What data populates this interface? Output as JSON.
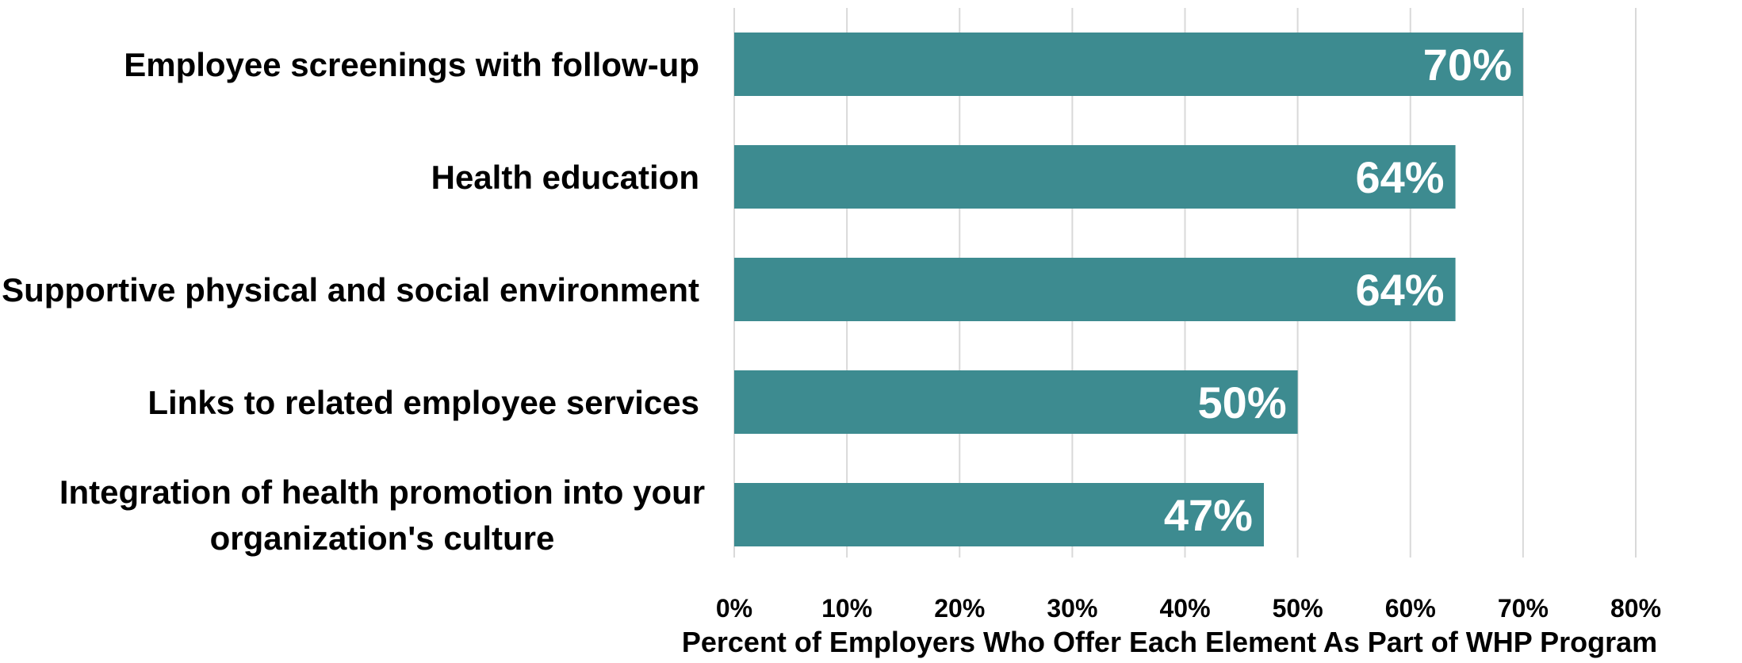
{
  "chart_data": {
    "type": "bar",
    "orientation": "horizontal",
    "categories": [
      [
        "Employee screenings with follow-up"
      ],
      [
        "Health education"
      ],
      [
        "Supportive physical and social environment"
      ],
      [
        "Links to related employee services"
      ],
      [
        "Integration of health promotion into your",
        "organization's culture"
      ]
    ],
    "values": [
      70,
      64,
      64,
      50,
      47
    ],
    "value_labels": [
      "70%",
      "64%",
      "64%",
      "50%",
      "47%"
    ],
    "xlim": [
      0,
      80
    ],
    "x_ticks": [
      0,
      10,
      20,
      30,
      40,
      50,
      60,
      70,
      80
    ],
    "x_tick_labels": [
      "0%",
      "10%",
      "20%",
      "30%",
      "40%",
      "50%",
      "60%",
      "70%",
      "80%"
    ],
    "xlabel": "Percent of Employers Who Offer Each Element As Part of WHP Program",
    "ylabel": "",
    "title": "",
    "grid": "vertical",
    "legend": "none",
    "bar_color": "#3d8b90",
    "gridline_color": "#d9d9d9",
    "label_color": "#ffffff"
  }
}
